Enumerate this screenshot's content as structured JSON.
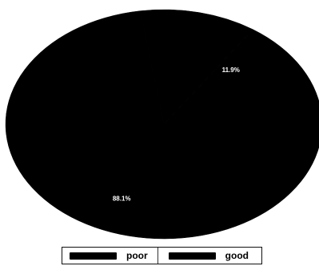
{
  "chart_data": {
    "type": "pie",
    "categories": [
      "poor",
      "good"
    ],
    "values": [
      11.9,
      88.1
    ],
    "labels": [
      "11.9%",
      "88.1%"
    ],
    "colors": [
      "#000000",
      "#000000"
    ],
    "legend_position": "bottom"
  }
}
